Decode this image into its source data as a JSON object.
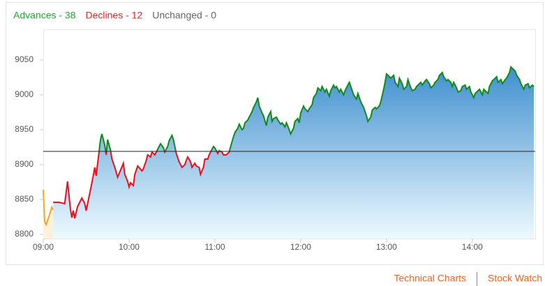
{
  "chart_data": {
    "type": "line",
    "summary": [
      {
        "label": "Advances - 38",
        "color": "#22a53c"
      },
      {
        "label": "Declines - 12",
        "color": "#e3262c"
      },
      {
        "label": "Unchanged - 0",
        "color": "#666666"
      }
    ],
    "links": [
      "Technical Charts",
      "Stock Watch"
    ],
    "xlim": [
      540,
      884
    ],
    "xticks": [
      {
        "value": 540,
        "label": "09:00"
      },
      {
        "value": 600,
        "label": "10:00"
      },
      {
        "value": 660,
        "label": "11:00"
      },
      {
        "value": 720,
        "label": "12:00"
      },
      {
        "value": 780,
        "label": "13:00"
      },
      {
        "value": 840,
        "label": "14:00"
      }
    ],
    "ylim": [
      8794,
      9094
    ],
    "yticks": [
      8800,
      8850,
      8900,
      8950,
      9000,
      9050
    ],
    "reference_line": 8919,
    "series": [
      {
        "color": "#f5a623",
        "fill": "#fdf1dc",
        "x": [
          540,
          541,
          542,
          544,
          546,
          547
        ],
        "values": [
          8864,
          8818,
          8814,
          8826,
          8839,
          8835
        ]
      },
      {
        "color_above": "#118a1a",
        "color_below": "#ea0f1a",
        "fill_top": "#3f8fcf",
        "fill_bottom": "#eefaff",
        "x": [
          547,
          551,
          555,
          557,
          559,
          560,
          561,
          562,
          564,
          567,
          569,
          570,
          572,
          574,
          576,
          577,
          579,
          580,
          581,
          583,
          584,
          585,
          587,
          588,
          590,
          592,
          594,
          596,
          597,
          599,
          600,
          601,
          603,
          604,
          606,
          607,
          609,
          610,
          612,
          613,
          615,
          616,
          618,
          619,
          621,
          622,
          624,
          625,
          627,
          628,
          630,
          631,
          633,
          635,
          637,
          639,
          640,
          641,
          643,
          644,
          646,
          647,
          649,
          650,
          652,
          653,
          655,
          656,
          658,
          659,
          660,
          662,
          663,
          665,
          666,
          668,
          670,
          671,
          673,
          674,
          676,
          677,
          679,
          680,
          681,
          683,
          684,
          686,
          687,
          689,
          690,
          691,
          693,
          694,
          696,
          697,
          699,
          700,
          701,
          703,
          704,
          706,
          707,
          709,
          710,
          712,
          713,
          715,
          716,
          718,
          719,
          720,
          722,
          723,
          725,
          726,
          728,
          729,
          731,
          732,
          734,
          735,
          737,
          738,
          740,
          741,
          743,
          744,
          745,
          747,
          748,
          750,
          751,
          753,
          754,
          756,
          757,
          759,
          760,
          762,
          763,
          764,
          766,
          767,
          769,
          770,
          772,
          773,
          775,
          776,
          778,
          779,
          780,
          782,
          783,
          785,
          786,
          788,
          789,
          791,
          792,
          794,
          795,
          797,
          798,
          800,
          801,
          802,
          804,
          805,
          807,
          808,
          810,
          811,
          813,
          814,
          816,
          817,
          819,
          820,
          822,
          823,
          825,
          826,
          827,
          829,
          830,
          832,
          833,
          835,
          836,
          838,
          839,
          841,
          842,
          844,
          845,
          847,
          848,
          850,
          851,
          852,
          854,
          855,
          857,
          858,
          860,
          861,
          863,
          864,
          866,
          867,
          868,
          870,
          871,
          873,
          874,
          876,
          877,
          879,
          880,
          882,
          883
        ],
        "values": [
          8846,
          8846,
          8844,
          8876,
          8836,
          8824,
          8834,
          8823,
          8840,
          8852,
          8844,
          8834,
          8854,
          8874,
          8896,
          8884,
          8918,
          8936,
          8944,
          8928,
          8914,
          8936,
          8921,
          8908,
          8896,
          8882,
          8892,
          8902,
          8886,
          8876,
          8868,
          8874,
          8870,
          8886,
          8898,
          8896,
          8891,
          8894,
          8906,
          8914,
          8911,
          8918,
          8914,
          8918,
          8926,
          8930,
          8924,
          8918,
          8926,
          8934,
          8942,
          8936,
          8916,
          8904,
          8896,
          8900,
          8906,
          8911,
          8904,
          8896,
          8902,
          8898,
          8896,
          8886,
          8896,
          8908,
          8908,
          8914,
          8922,
          8926,
          8924,
          8916,
          8920,
          8918,
          8914,
          8914,
          8918,
          8926,
          8940,
          8946,
          8952,
          8958,
          8950,
          8952,
          8960,
          8964,
          8968,
          8976,
          8982,
          8990,
          8996,
          8984,
          8974,
          8970,
          8956,
          8968,
          8976,
          8962,
          8966,
          8968,
          8964,
          8958,
          8960,
          8954,
          8960,
          8950,
          8944,
          8952,
          8962,
          8966,
          8960,
          8974,
          8984,
          8980,
          8976,
          8980,
          8986,
          8996,
          9002,
          9010,
          9006,
          9012,
          9004,
          9008,
          8998,
          9006,
          9014,
          9010,
          9012,
          9004,
          9008,
          9000,
          9006,
          9014,
          9018,
          9006,
          9000,
          8994,
          9002,
          8990,
          8986,
          8982,
          8970,
          8962,
          8968,
          8978,
          8982,
          8980,
          8984,
          8990,
          9008,
          9018,
          9030,
          9026,
          9024,
          9028,
          9018,
          9012,
          9024,
          9016,
          9008,
          9012,
          9022,
          9010,
          9006,
          9008,
          9012,
          9014,
          9018,
          9014,
          9020,
          9022,
          9016,
          9010,
          9014,
          9018,
          9022,
          9028,
          9032,
          9026,
          9020,
          9022,
          9018,
          9012,
          9018,
          9010,
          9004,
          9006,
          9012,
          9014,
          9008,
          9012,
          9004,
          8996,
          9002,
          9006,
          9008,
          9000,
          9008,
          9004,
          9002,
          9012,
          9020,
          9022,
          9026,
          9018,
          9022,
          9016,
          9022,
          9024,
          9032,
          9040,
          9038,
          9034,
          9028,
          9022,
          9016,
          9008,
          9014,
          9016,
          9010,
          9014,
          9012
        ]
      }
    ]
  }
}
